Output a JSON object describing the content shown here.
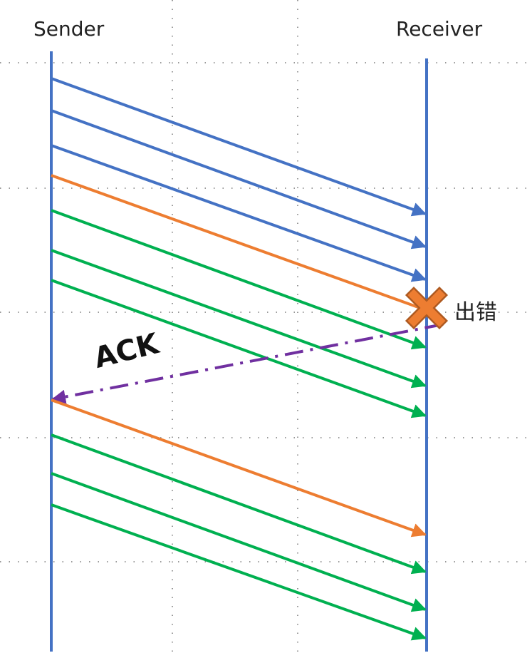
{
  "labels": {
    "sender": "Sender",
    "receiver": "Receiver",
    "ack": "ACK",
    "error": "出错"
  },
  "colors": {
    "timeline": "#4472C4",
    "initial_packet": "#4472C4",
    "retransmitted_packet": "#ED7D31",
    "discarded_packet": "#00B050",
    "ack": "#7030A0",
    "error_mark": "#ED7D31",
    "grid": "#777777"
  },
  "messages": [
    {
      "kind": "initial_packet"
    },
    {
      "kind": "initial_packet"
    },
    {
      "kind": "initial_packet"
    },
    {
      "kind": "retransmitted_packet",
      "lost": true
    },
    {
      "kind": "discarded_packet"
    },
    {
      "kind": "discarded_packet"
    },
    {
      "kind": "discarded_packet"
    },
    {
      "kind": "ack"
    },
    {
      "kind": "retransmitted_packet"
    },
    {
      "kind": "discarded_packet"
    },
    {
      "kind": "discarded_packet"
    },
    {
      "kind": "discarded_packet"
    }
  ],
  "icons": {
    "error_mark": "cross-icon"
  }
}
